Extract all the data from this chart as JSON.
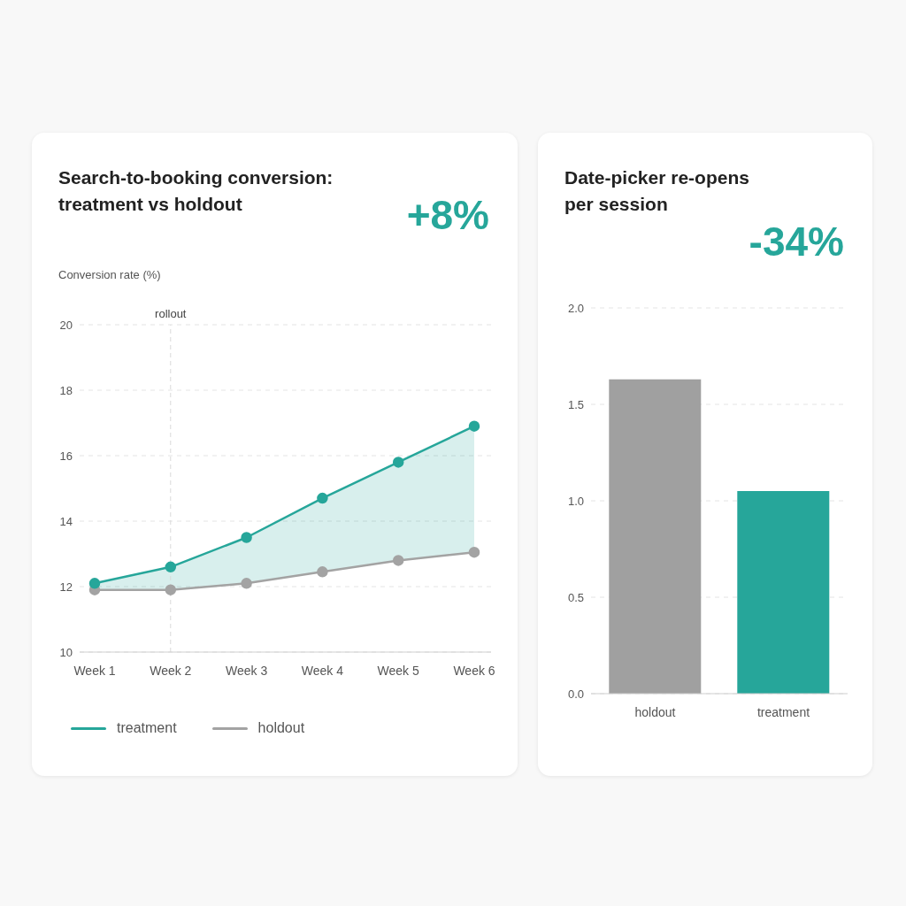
{
  "chart_data": [
    {
      "type": "line",
      "title": "Search-to-booking conversion: treatment vs holdout",
      "ylabel": "Conversion rate (%)",
      "annotations": [
        "+8%"
      ],
      "categories": [
        "Week 1",
        "Week 2",
        "Week 3",
        "Week 4",
        "Week 5",
        "Week 6"
      ],
      "series": [
        {
          "name": "treatment",
          "color": "#26a69a",
          "values": [
            12.1,
            12.6,
            13.5,
            14.7,
            15.8,
            16.9
          ],
          "lower": [
            11.9,
            11.9,
            12.1,
            12.45,
            12.8,
            13.05
          ],
          "upper": [
            12.1,
            12.6,
            13.5,
            14.7,
            15.8,
            16.9
          ]
        },
        {
          "name": "holdout",
          "color": "#a3a3a3",
          "values": [
            11.9,
            11.9,
            12.1,
            12.45,
            12.8,
            13.05
          ]
        }
      ],
      "ylim": [
        10,
        20
      ],
      "yticks": [
        10,
        12,
        14,
        16,
        18,
        20
      ],
      "grid": "y",
      "legend": "bottom",
      "marker": "circle",
      "line_style": "solid",
      "ref_lines": [
        {
          "axis": "x",
          "value": "Week 2",
          "label": "rollout",
          "color": "#d9d9d9",
          "line_style": "dashed"
        }
      ]
    },
    {
      "type": "bar",
      "title": "Date-picker re-opens per session",
      "annotations": [
        "-34%"
      ],
      "categories": [
        "holdout",
        "treatment"
      ],
      "values": [
        1.63,
        1.05
      ],
      "colors": [
        "#a0a0a0",
        "#26a69a"
      ],
      "ylim": [
        0,
        2
      ],
      "yticks": [
        {
          "value": 0,
          "label": "0.0"
        },
        {
          "value": 0.5,
          "label": "0.5"
        },
        {
          "value": 1,
          "label": "1.0"
        },
        {
          "value": 1.5,
          "label": "1.5"
        },
        {
          "value": 2,
          "label": "2.0"
        }
      ],
      "grid": "y"
    }
  ]
}
